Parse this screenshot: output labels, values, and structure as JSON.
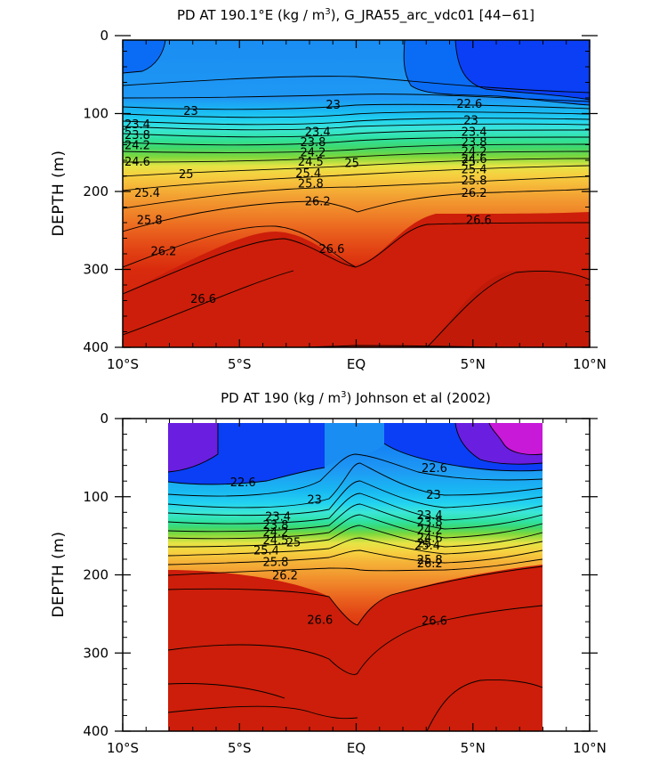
{
  "chart_data": [
    {
      "type": "contour",
      "title": "PD AT 190.1°E (kg / m³), G_JRA55_arc_vdc01 [44–61]",
      "ylabel": "DEPTH (m)",
      "xlabel": "",
      "xlim": [
        -10,
        10
      ],
      "ylim": [
        400,
        0
      ],
      "x_tick_values": [
        -10,
        -5,
        0,
        5,
        10
      ],
      "x_tick_labels": [
        "10°S",
        "5°S",
        "EQ",
        "5°N",
        "10°N"
      ],
      "y_tick_values": [
        0,
        100,
        200,
        300,
        400
      ],
      "y_tick_labels": [
        "0",
        "100",
        "200",
        "300",
        "400"
      ],
      "data_extent": {
        "x": [
          -10,
          10
        ],
        "depth": [
          5,
          400
        ]
      },
      "contour_interval": 0.2,
      "contour_labels": [
        {
          "text": "23",
          "x": -7.4,
          "depth": 97
        },
        {
          "text": "23.4",
          "x": -10,
          "depth": 114
        },
        {
          "text": "23.8",
          "x": -10,
          "depth": 128
        },
        {
          "text": "24.2",
          "x": -10,
          "depth": 141
        },
        {
          "text": "24.6",
          "x": -10,
          "depth": 162
        },
        {
          "text": "25",
          "x": -7.6,
          "depth": 178
        },
        {
          "text": "25.4",
          "x": -9.5,
          "depth": 202
        },
        {
          "text": "25.8",
          "x": -9.4,
          "depth": 237
        },
        {
          "text": "26.2",
          "x": -8.8,
          "depth": 277
        },
        {
          "text": "26.6",
          "x": -7.1,
          "depth": 338
        },
        {
          "text": "23",
          "x": -1.3,
          "depth": 89
        },
        {
          "text": "23.4",
          "x": -2.2,
          "depth": 124
        },
        {
          "text": "23.8",
          "x": -2.4,
          "depth": 137
        },
        {
          "text": "24.2",
          "x": -2.4,
          "depth": 150
        },
        {
          "text": "24.5",
          "x": -2.5,
          "depth": 162
        },
        {
          "text": "25",
          "x": -0.5,
          "depth": 164
        },
        {
          "text": "25.4",
          "x": -2.6,
          "depth": 177
        },
        {
          "text": "25.8",
          "x": -2.5,
          "depth": 190
        },
        {
          "text": "26.2",
          "x": -2.2,
          "depth": 213
        },
        {
          "text": "26.6",
          "x": -1.6,
          "depth": 274
        },
        {
          "text": "22.6",
          "x": 4.3,
          "depth": 88
        },
        {
          "text": "23",
          "x": 4.6,
          "depth": 109
        },
        {
          "text": "23.4",
          "x": 4.5,
          "depth": 124
        },
        {
          "text": "23.8",
          "x": 4.5,
          "depth": 137
        },
        {
          "text": "24.2",
          "x": 4.5,
          "depth": 149
        },
        {
          "text": "24.6",
          "x": 4.5,
          "depth": 159
        },
        {
          "text": "25",
          "x": 4.5,
          "depth": 162
        },
        {
          "text": "25.4",
          "x": 4.5,
          "depth": 172
        },
        {
          "text": "25.8",
          "x": 4.5,
          "depth": 186
        },
        {
          "text": "26.2",
          "x": 4.5,
          "depth": 202
        },
        {
          "text": "26.6",
          "x": 4.7,
          "depth": 237
        }
      ],
      "colormap": [
        "#8a00d8",
        "#3c28e8",
        "#0a3ff5",
        "#0a6cf5",
        "#1e98f4",
        "#19b8f2",
        "#22d2f0",
        "#3be6d6",
        "#2fe2a2",
        "#3fd86c",
        "#7ed83c",
        "#b8e03a",
        "#e6e445",
        "#f6d040",
        "#f5b438",
        "#f29a30",
        "#ef7f27",
        "#ea621e",
        "#e24414",
        "#d82a0d",
        "#cc1e0a"
      ]
    },
    {
      "type": "contour",
      "title": "PD AT 190 (kg / m³) Johnson et al (2002)",
      "ylabel": "DEPTH (m)",
      "xlabel": "",
      "xlim": [
        -10,
        10
      ],
      "ylim": [
        400,
        0
      ],
      "x_tick_values": [
        -10,
        -5,
        0,
        5,
        10
      ],
      "x_tick_labels": [
        "10°S",
        "5°S",
        "EQ",
        "5°N",
        "10°N"
      ],
      "y_tick_values": [
        0,
        100,
        200,
        300,
        400
      ],
      "y_tick_labels": [
        "0",
        "100",
        "200",
        "300",
        "400"
      ],
      "data_extent": {
        "x": [
          -8,
          8
        ],
        "depth": [
          5,
          400
        ]
      },
      "contour_interval": 0.2,
      "contour_labels": [
        {
          "text": "22.6",
          "x": -5.4,
          "depth": 82
        },
        {
          "text": "23",
          "x": -2.1,
          "depth": 104
        },
        {
          "text": "23.4",
          "x": -3.9,
          "depth": 126
        },
        {
          "text": "23.8",
          "x": -4.0,
          "depth": 137
        },
        {
          "text": "24.2",
          "x": -4.0,
          "depth": 146
        },
        {
          "text": "24.5",
          "x": -4.0,
          "depth": 156
        },
        {
          "text": "25",
          "x": -3.0,
          "depth": 159
        },
        {
          "text": "25.4",
          "x": -4.4,
          "depth": 169
        },
        {
          "text": "25.8",
          "x": -4.0,
          "depth": 184
        },
        {
          "text": "26.2",
          "x": -3.6,
          "depth": 201
        },
        {
          "text": "26.6",
          "x": -2.1,
          "depth": 258
        },
        {
          "text": "22.6",
          "x": 2.8,
          "depth": 64
        },
        {
          "text": "23",
          "x": 3.0,
          "depth": 98
        },
        {
          "text": "23.4",
          "x": 2.6,
          "depth": 124
        },
        {
          "text": "23.8",
          "x": 2.6,
          "depth": 133
        },
        {
          "text": "24.2",
          "x": 2.6,
          "depth": 143
        },
        {
          "text": "24.6",
          "x": 2.6,
          "depth": 153
        },
        {
          "text": "25",
          "x": 2.6,
          "depth": 160
        },
        {
          "text": "25.4",
          "x": 2.5,
          "depth": 163
        },
        {
          "text": "25.8",
          "x": 2.6,
          "depth": 181
        },
        {
          "text": "26.2",
          "x": 2.6,
          "depth": 186
        },
        {
          "text": "26.6",
          "x": 2.8,
          "depth": 259
        }
      ],
      "colormap": [
        "#a010d8",
        "#d020d8",
        "#3c28e8",
        "#0a3ff5",
        "#0a6cf5",
        "#1e98f4",
        "#19b8f2",
        "#22d2f0",
        "#3be6d6",
        "#2fe2a2",
        "#3fd86c",
        "#7ed83c",
        "#b8e03a",
        "#e6e445",
        "#f6d040",
        "#f5b438",
        "#f29a30",
        "#ef7f27",
        "#ea621e",
        "#e24414",
        "#d82a0d",
        "#cc1e0a"
      ]
    }
  ]
}
